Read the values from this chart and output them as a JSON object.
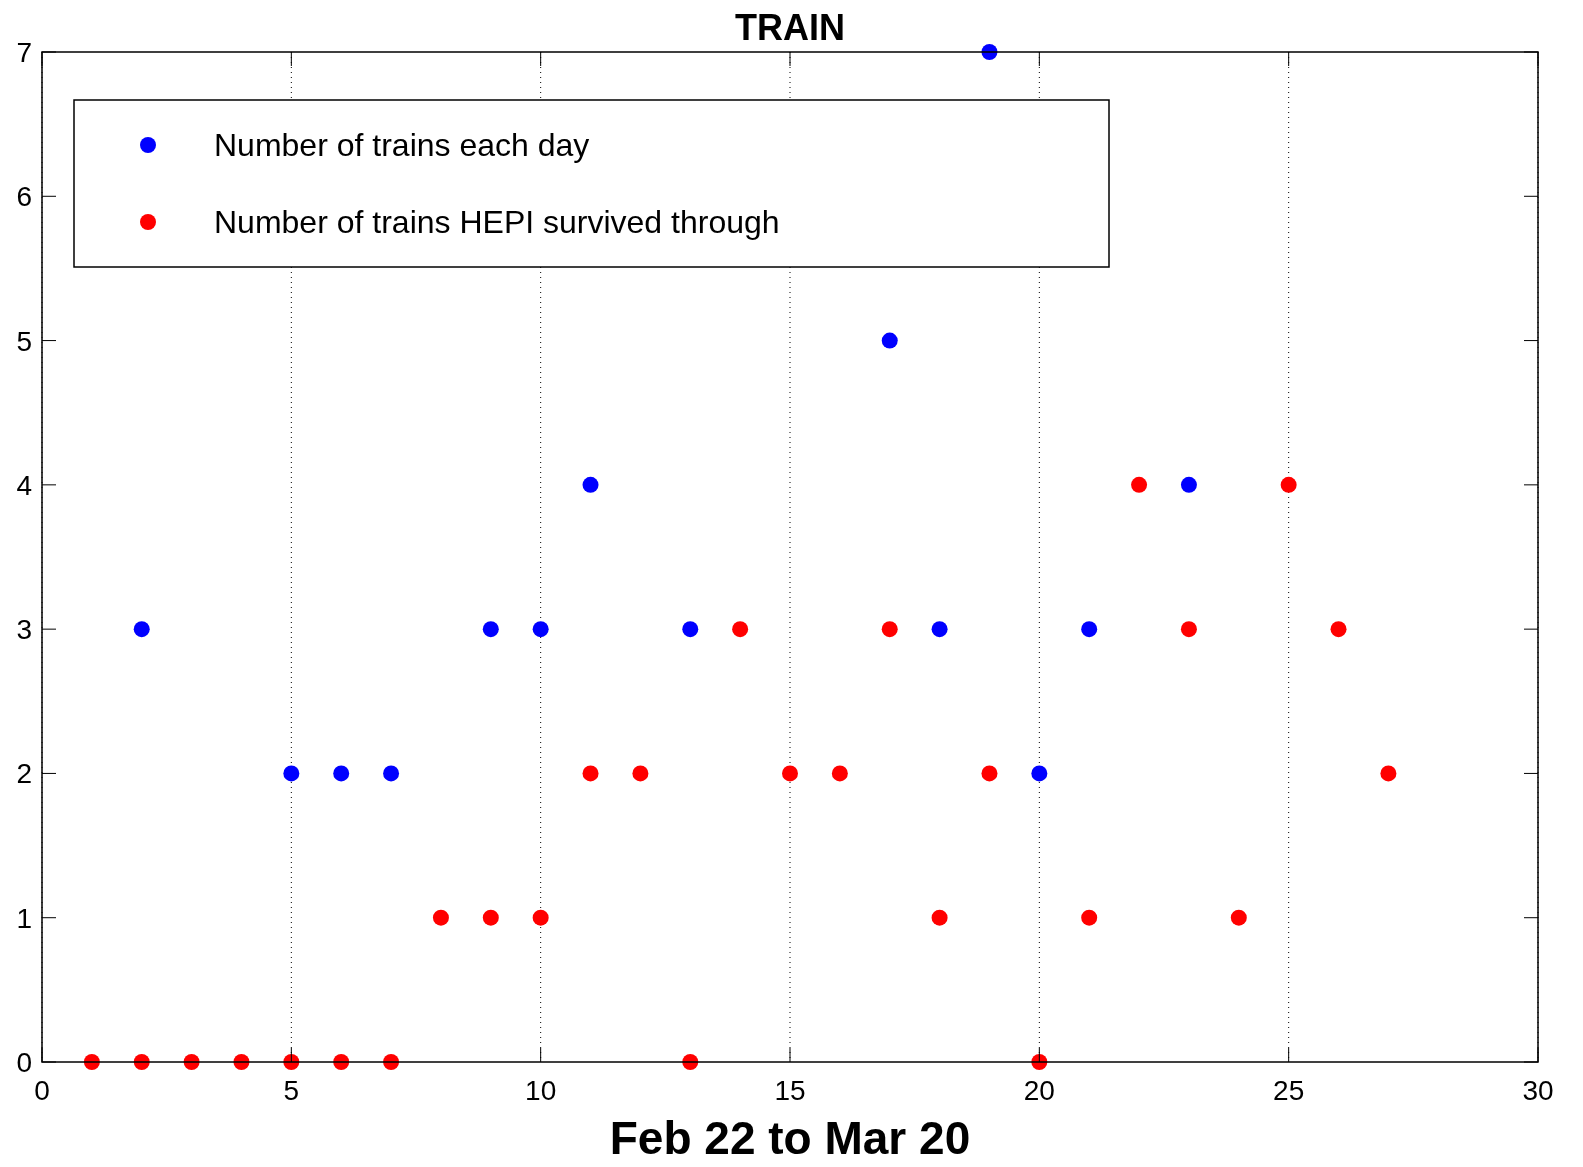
{
  "chart_data": {
    "type": "scatter",
    "title": "TRAIN",
    "xlabel": "Feb 22 to Mar 20",
    "x": [
      1,
      2,
      3,
      4,
      5,
      6,
      7,
      8,
      9,
      10,
      11,
      12,
      13,
      14,
      15,
      16,
      17,
      18,
      19,
      20,
      21,
      22,
      23,
      24,
      25,
      26,
      27
    ],
    "series": [
      {
        "name": "Number of trains each day",
        "color": "#0000ff",
        "values": [
          null,
          3,
          null,
          null,
          2,
          2,
          2,
          null,
          3,
          3,
          4,
          null,
          3,
          null,
          null,
          null,
          5,
          3,
          7,
          2,
          3,
          null,
          4,
          null,
          null,
          null,
          null
        ]
      },
      {
        "name": "Number of trains HEPI survived through",
        "color": "#ff0000",
        "values": [
          0,
          0,
          0,
          0,
          0,
          0,
          0,
          1,
          1,
          1,
          2,
          2,
          0,
          3,
          2,
          2,
          3,
          1,
          2,
          0,
          1,
          4,
          3,
          1,
          4,
          3,
          2
        ]
      }
    ],
    "xlim": [
      0,
      30
    ],
    "xticks": [
      0,
      5,
      10,
      15,
      20,
      25,
      30
    ],
    "ylim": [
      0,
      7
    ],
    "yticks": [
      0,
      1,
      2,
      3,
      4,
      5,
      6,
      7
    ],
    "grid": "x",
    "legend": "top left",
    "marker": "circle"
  }
}
